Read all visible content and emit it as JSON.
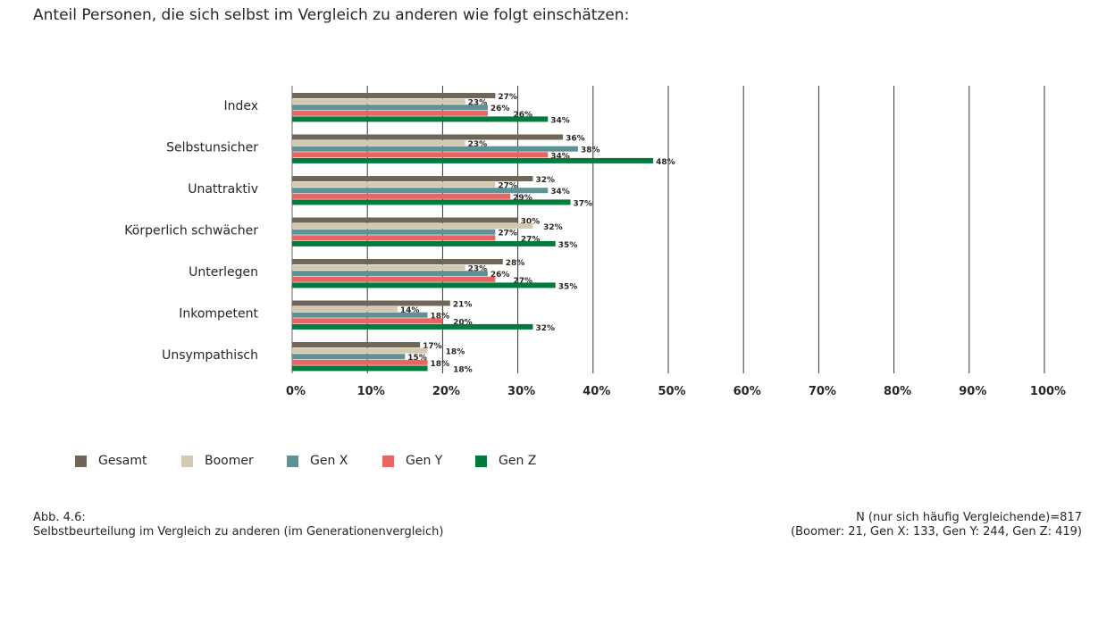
{
  "title": "Anteil Personen, die sich selbst im Vergleich zu anderen wie folgt einschätzen:",
  "caption_left": {
    "line1": "Abb. 4.6:",
    "line2": "Selbstbeurteilung im Vergleich zu anderen (im Generationenvergleich)"
  },
  "caption_right": {
    "line1": "N (nur sich häufig Vergleichende)=817",
    "line2": "(Boomer: 21, Gen X: 133, Gen Y: 244, Gen Z: 419)"
  },
  "chart_data": {
    "type": "bar",
    "orientation": "horizontal",
    "title": "Anteil Personen, die sich selbst im Vergleich zu anderen wie folgt einschätzen:",
    "categories": [
      "Index",
      "Selbstunsicher",
      "Unattraktiv",
      "Körperlich schwächer",
      "Unterlegen",
      "Inkompetent",
      "Unsympathisch"
    ],
    "series": [
      {
        "name": "Gesamt",
        "color": "#6f6657",
        "values": [
          27,
          36,
          32,
          30,
          28,
          21,
          17
        ]
      },
      {
        "name": "Boomer",
        "color": "#d3c8b0",
        "values": [
          23,
          23,
          27,
          32,
          23,
          14,
          18
        ]
      },
      {
        "name": "Gen X",
        "color": "#5f9295",
        "values": [
          26,
          38,
          34,
          27,
          26,
          18,
          15
        ]
      },
      {
        "name": "Gen Y",
        "color": "#ea6461",
        "values": [
          26,
          34,
          29,
          27,
          27,
          20,
          18
        ]
      },
      {
        "name": "Gen Z",
        "color": "#007a3d",
        "values": [
          34,
          48,
          37,
          35,
          35,
          32,
          18
        ]
      }
    ],
    "xlim": [
      0,
      100
    ],
    "xticks": [
      "0%",
      "10%",
      "20%",
      "30%",
      "40%",
      "50%",
      "60%",
      "70%",
      "80%",
      "90%",
      "100%"
    ],
    "grid": true,
    "legend_placement": "bottom-left",
    "value_suffix": "%"
  }
}
